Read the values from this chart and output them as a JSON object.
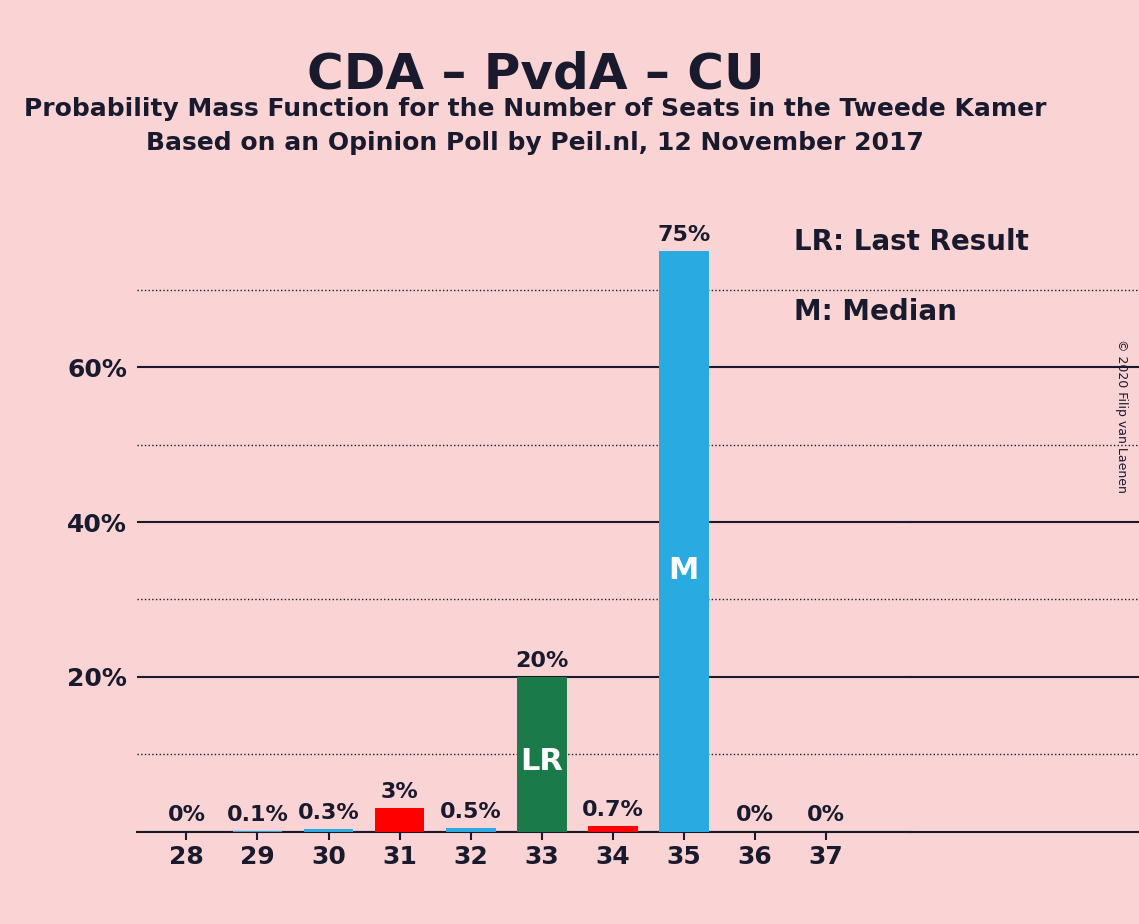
{
  "title": "CDA – PvdA – CU",
  "subtitle1": "Probability Mass Function for the Number of Seats in the Tweede Kamer",
  "subtitle2": "Based on an Opinion Poll by Peil.nl, 12 November 2017",
  "copyright": "© 2020 Filip van Laenen",
  "seats": [
    28,
    29,
    30,
    31,
    32,
    33,
    34,
    35,
    36,
    37
  ],
  "values": [
    0.0,
    0.1,
    0.3,
    3.0,
    0.5,
    20.0,
    0.7,
    75.0,
    0.0,
    0.0
  ],
  "bar_colors": [
    "#29ABE2",
    "#29ABE2",
    "#29ABE2",
    "#FF0000",
    "#29ABE2",
    "#1A7A4A",
    "#FF0000",
    "#29ABE2",
    "#29ABE2",
    "#29ABE2"
  ],
  "background_color": "#FAD4D4",
  "text_color": "#1a1a2e",
  "bar_label_inside": {
    "33": "LR",
    "35": "M"
  },
  "ylim": [
    0,
    80
  ],
  "solid_yticks": [
    0,
    20,
    40,
    60
  ],
  "dotted_yticks": [
    10,
    30,
    50,
    70
  ],
  "ytick_display": [
    20,
    40,
    60
  ],
  "ytick_labels": [
    "20%",
    "40%",
    "60%"
  ],
  "bar_value_labels": [
    "0%",
    "0.1%",
    "0.3%",
    "3%",
    "0.5%",
    "20%",
    "0.7%",
    "75%",
    "0%",
    "0%"
  ],
  "legend_text1": "LR: Last Result",
  "legend_text2": "M: Median",
  "bar_width": 0.7,
  "title_fontsize": 36,
  "subtitle_fontsize": 18,
  "label_fontsize": 16,
  "tick_fontsize": 18,
  "legend_fontsize": 20,
  "inside_label_fontsize": 22,
  "copyright_fontsize": 9
}
